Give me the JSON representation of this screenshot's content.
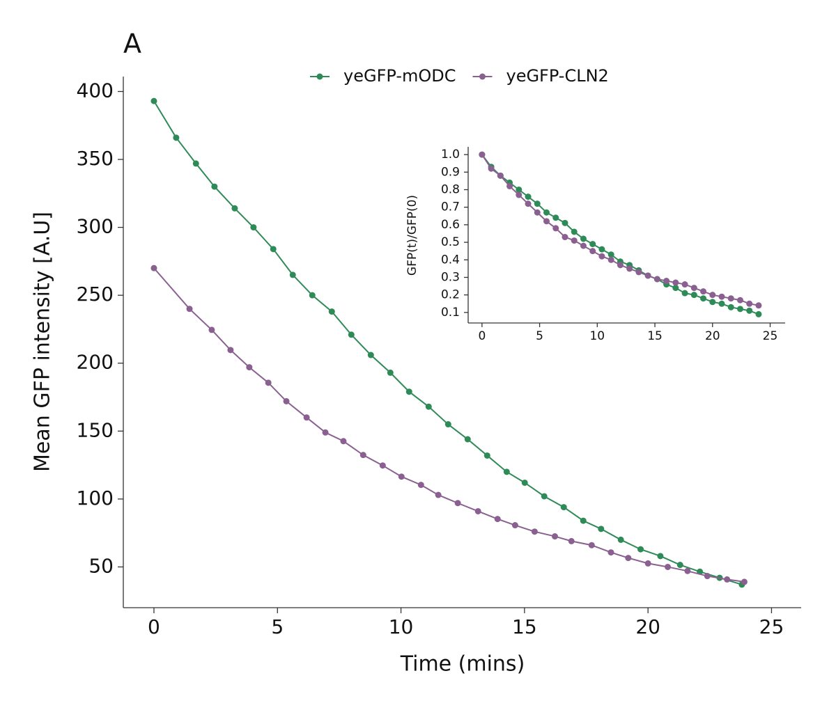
{
  "chart_data": [
    {
      "type": "line",
      "title": "A",
      "xlabel": "Time (mins)",
      "ylabel": "Mean GFP intensity [A.U]",
      "xlim": [
        -1.24,
        26.2
      ],
      "ylim": [
        20,
        411
      ],
      "xticks": [
        0,
        5,
        10,
        15,
        20,
        25
      ],
      "yticks": [
        50,
        100,
        150,
        200,
        250,
        300,
        350,
        400
      ],
      "legend": "top",
      "series": [
        {
          "name": "yeGFP-mODC",
          "color": "#2e8b57",
          "x": [
            0,
            0.9,
            1.7,
            2.45,
            3.27,
            4.03,
            4.83,
            5.62,
            6.41,
            7.2,
            7.99,
            8.78,
            9.57,
            10.33,
            11.12,
            11.91,
            12.7,
            13.49,
            14.28,
            15.01,
            15.8,
            16.59,
            17.38,
            18.1,
            18.9,
            19.7,
            20.5,
            21.3,
            22.1,
            22.9,
            23.8
          ],
          "values": [
            393,
            366,
            347,
            330,
            314,
            300,
            284,
            265,
            250,
            238,
            221,
            206,
            193,
            179,
            168,
            155,
            144,
            132,
            120,
            112,
            102,
            94,
            84,
            78,
            70,
            63,
            58,
            51.5,
            46.5,
            42,
            37
          ]
        },
        {
          "name": "yeGFP-CLN2",
          "color": "#8a6090",
          "x": [
            0,
            1.44,
            2.34,
            3.1,
            3.86,
            4.63,
            5.36,
            6.18,
            6.94,
            7.67,
            8.47,
            9.26,
            10.02,
            10.81,
            11.51,
            12.3,
            13.12,
            13.91,
            14.62,
            15.41,
            16.23,
            16.9,
            17.72,
            18.5,
            19.2,
            20.0,
            20.8,
            21.6,
            22.4,
            23.2,
            23.9
          ],
          "values": [
            270,
            240,
            224.5,
            209.7,
            197,
            185.6,
            172,
            160,
            149,
            142.6,
            132.4,
            124.7,
            116.5,
            110.4,
            103,
            97,
            91,
            85.3,
            80.7,
            76,
            72.5,
            69,
            66,
            60.7,
            56.6,
            52.6,
            50,
            47,
            43.3,
            40.8,
            39
          ]
        }
      ]
    },
    {
      "type": "line",
      "ylabel": "GFP(t)/GFP(0)",
      "xlim": [
        -1.2,
        26.3
      ],
      "ylim": [
        0.04,
        1.044
      ],
      "xticks": [
        0,
        5,
        10,
        15,
        20,
        25
      ],
      "yticks": [
        0.1,
        0.2,
        0.3,
        0.4,
        0.5,
        0.6,
        0.7,
        0.8,
        0.9,
        {
          "value": 1,
          "label": "1.0"
        }
      ],
      "series": [
        {
          "color": "#2e8b57",
          "x": [
            0,
            0.8,
            1.6,
            2.4,
            3.2,
            4.0,
            4.8,
            5.6,
            6.4,
            7.2,
            8.0,
            8.8,
            9.6,
            10.4,
            11.2,
            12.0,
            12.8,
            13.6,
            14.4,
            15.2,
            16.0,
            16.8,
            17.6,
            18.4,
            19.2,
            20.0,
            20.8,
            21.6,
            22.4,
            23.2,
            24.0
          ],
          "values": [
            1.0,
            0.93,
            0.88,
            0.84,
            0.8,
            0.76,
            0.72,
            0.67,
            0.64,
            0.61,
            0.56,
            0.52,
            0.49,
            0.46,
            0.43,
            0.39,
            0.37,
            0.34,
            0.31,
            0.29,
            0.26,
            0.24,
            0.21,
            0.2,
            0.18,
            0.16,
            0.15,
            0.13,
            0.12,
            0.11,
            0.09
          ]
        },
        {
          "color": "#8a6090",
          "x": [
            0,
            0.8,
            1.6,
            2.4,
            3.2,
            4.0,
            4.8,
            5.6,
            6.4,
            7.2,
            8.0,
            8.8,
            9.6,
            10.4,
            11.2,
            12.0,
            12.8,
            13.6,
            14.4,
            15.2,
            16.0,
            16.8,
            17.6,
            18.4,
            19.2,
            20.0,
            20.8,
            21.6,
            22.4,
            23.2,
            24.0
          ],
          "values": [
            1.0,
            0.92,
            0.88,
            0.82,
            0.77,
            0.72,
            0.67,
            0.62,
            0.58,
            0.53,
            0.51,
            0.48,
            0.45,
            0.42,
            0.4,
            0.37,
            0.35,
            0.33,
            0.31,
            0.29,
            0.28,
            0.27,
            0.26,
            0.24,
            0.22,
            0.2,
            0.19,
            0.18,
            0.17,
            0.15,
            0.14
          ]
        }
      ]
    }
  ]
}
